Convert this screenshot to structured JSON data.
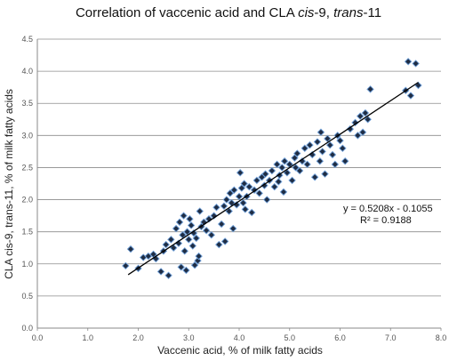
{
  "chart_data": {
    "type": "scatter",
    "title_prefix": "Correlation of vaccenic acid and CLA ",
    "title_italic_1": "cis",
    "title_mid": "-9, ",
    "title_italic_2": "trans",
    "title_suffix": "-11",
    "xlabel": "Vaccenic acid, % of milk fatty acids",
    "ylabel": "CLA cis-9, trans-11, % of milk fatty acids",
    "xlim": [
      0,
      8
    ],
    "ylim": [
      0,
      4.5
    ],
    "x_ticks": [
      "0.0",
      "1.0",
      "2.0",
      "3.0",
      "4.0",
      "5.0",
      "6.0",
      "7.0",
      "8.0"
    ],
    "y_ticks": [
      "0.0",
      "0.5",
      "1.0",
      "1.5",
      "2.0",
      "2.5",
      "3.0",
      "3.5",
      "4.0",
      "4.5"
    ],
    "grid": true,
    "trendline": {
      "slope": 0.5208,
      "intercept": -0.1055,
      "x_range": [
        1.8,
        7.55
      ]
    },
    "equation": "y = 0.5208x - 0.1055",
    "r_squared": "R² = 0.9188",
    "points": [
      [
        1.75,
        0.97
      ],
      [
        1.85,
        1.23
      ],
      [
        2.0,
        0.93
      ],
      [
        2.1,
        1.1
      ],
      [
        2.2,
        1.12
      ],
      [
        2.3,
        1.15
      ],
      [
        2.35,
        1.08
      ],
      [
        2.45,
        0.88
      ],
      [
        2.5,
        1.2
      ],
      [
        2.55,
        1.3
      ],
      [
        2.6,
        0.82
      ],
      [
        2.65,
        1.38
      ],
      [
        2.7,
        1.25
      ],
      [
        2.75,
        1.55
      ],
      [
        2.8,
        1.32
      ],
      [
        2.82,
        1.65
      ],
      [
        2.85,
        0.95
      ],
      [
        2.88,
        1.45
      ],
      [
        2.9,
        1.75
      ],
      [
        2.92,
        1.2
      ],
      [
        2.95,
        0.9
      ],
      [
        2.97,
        1.5
      ],
      [
        3.0,
        1.38
      ],
      [
        3.02,
        1.7
      ],
      [
        3.05,
        1.6
      ],
      [
        3.08,
        1.28
      ],
      [
        3.1,
        1.48
      ],
      [
        3.12,
        0.98
      ],
      [
        3.15,
        1.4
      ],
      [
        3.18,
        1.05
      ],
      [
        3.2,
        1.12
      ],
      [
        3.22,
        1.82
      ],
      [
        3.25,
        1.58
      ],
      [
        3.3,
        1.65
      ],
      [
        3.35,
        1.52
      ],
      [
        3.4,
        1.7
      ],
      [
        3.45,
        1.45
      ],
      [
        3.5,
        1.75
      ],
      [
        3.55,
        1.88
      ],
      [
        3.6,
        1.3
      ],
      [
        3.65,
        1.62
      ],
      [
        3.7,
        1.9
      ],
      [
        3.72,
        1.35
      ],
      [
        3.75,
        2.0
      ],
      [
        3.8,
        1.82
      ],
      [
        3.82,
        2.1
      ],
      [
        3.85,
        1.95
      ],
      [
        3.88,
        1.55
      ],
      [
        3.9,
        2.15
      ],
      [
        3.95,
        1.92
      ],
      [
        4.0,
        2.05
      ],
      [
        4.02,
        2.42
      ],
      [
        4.05,
        2.18
      ],
      [
        4.08,
        1.95
      ],
      [
        4.1,
        2.25
      ],
      [
        4.12,
        1.85
      ],
      [
        4.15,
        2.05
      ],
      [
        4.2,
        2.2
      ],
      [
        4.25,
        1.8
      ],
      [
        4.3,
        2.15
      ],
      [
        4.35,
        2.3
      ],
      [
        4.4,
        2.1
      ],
      [
        4.45,
        2.35
      ],
      [
        4.5,
        2.22
      ],
      [
        4.52,
        2.4
      ],
      [
        4.55,
        2.0
      ],
      [
        4.6,
        2.3
      ],
      [
        4.65,
        2.45
      ],
      [
        4.7,
        2.2
      ],
      [
        4.75,
        2.55
      ],
      [
        4.78,
        2.28
      ],
      [
        4.8,
        2.38
      ],
      [
        4.85,
        2.5
      ],
      [
        4.88,
        2.12
      ],
      [
        4.9,
        2.6
      ],
      [
        4.95,
        2.42
      ],
      [
        5.0,
        2.55
      ],
      [
        5.05,
        2.3
      ],
      [
        5.1,
        2.65
      ],
      [
        5.12,
        2.5
      ],
      [
        5.15,
        2.72
      ],
      [
        5.2,
        2.45
      ],
      [
        5.25,
        2.6
      ],
      [
        5.3,
        2.8
      ],
      [
        5.35,
        2.55
      ],
      [
        5.4,
        2.85
      ],
      [
        5.45,
        2.7
      ],
      [
        5.5,
        2.35
      ],
      [
        5.55,
        2.9
      ],
      [
        5.6,
        2.6
      ],
      [
        5.62,
        3.05
      ],
      [
        5.65,
        2.75
      ],
      [
        5.7,
        2.4
      ],
      [
        5.75,
        2.95
      ],
      [
        5.8,
        2.85
      ],
      [
        5.85,
        2.7
      ],
      [
        5.9,
        2.55
      ],
      [
        5.95,
        3.0
      ],
      [
        6.0,
        2.92
      ],
      [
        6.05,
        2.8
      ],
      [
        6.1,
        2.6
      ],
      [
        6.2,
        3.1
      ],
      [
        6.3,
        3.2
      ],
      [
        6.35,
        3.0
      ],
      [
        6.4,
        3.3
      ],
      [
        6.45,
        3.05
      ],
      [
        6.5,
        3.35
      ],
      [
        6.55,
        3.25
      ],
      [
        6.6,
        3.72
      ],
      [
        7.3,
        3.7
      ],
      [
        7.35,
        4.15
      ],
      [
        7.4,
        3.62
      ],
      [
        7.5,
        4.12
      ],
      [
        7.55,
        3.78
      ]
    ]
  }
}
